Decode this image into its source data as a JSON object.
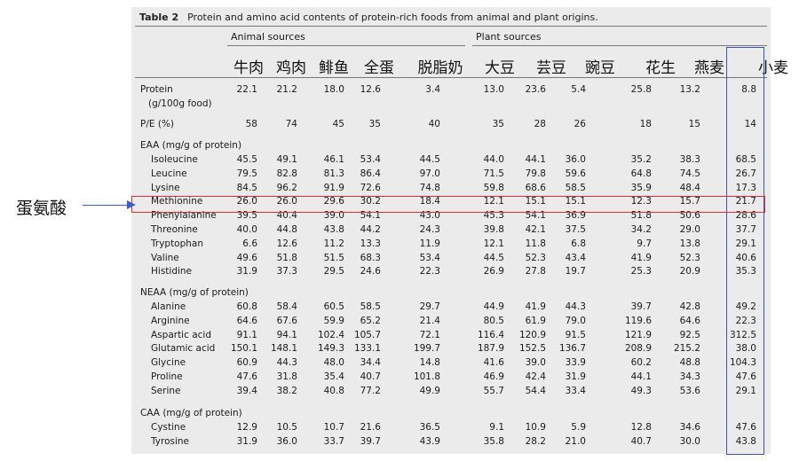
{
  "table": {
    "title_label": "Table 2",
    "title": "Protein and amino acid contents of protein-rich foods from animal and plant origins.",
    "groups": {
      "animal": "Animal sources",
      "plant": "Plant sources"
    },
    "foods_cn": [
      "牛肉",
      "鸡肉",
      "鲱鱼",
      "全蛋",
      "脱脂奶",
      "大豆",
      "芸豆",
      "豌豆",
      "花生",
      "燕麦",
      "小麦"
    ],
    "protein_row": {
      "label": "Protein",
      "note": "(g/100g food)",
      "values": [
        "22.1",
        "21.2",
        "18.0",
        "12.6",
        "3.4",
        "13.0",
        "23.6",
        "5.4",
        "25.8",
        "13.2",
        "8.8"
      ]
    },
    "pe_row": {
      "label": "P/E (%)",
      "values": [
        "58",
        "74",
        "45",
        "35",
        "40",
        "35",
        "28",
        "26",
        "18",
        "15",
        "14"
      ]
    },
    "eaa": {
      "header": "EAA (mg/g of protein)",
      "rows": [
        {
          "label": "Isoleucine",
          "values": [
            "45.5",
            "49.1",
            "46.1",
            "53.4",
            "44.5",
            "44.0",
            "44.1",
            "36.0",
            "35.2",
            "38.3",
            "68.5"
          ]
        },
        {
          "label": "Leucine",
          "values": [
            "79.5",
            "82.8",
            "81.3",
            "86.4",
            "97.0",
            "71.5",
            "79.8",
            "59.6",
            "64.8",
            "74.5",
            "26.7"
          ]
        },
        {
          "label": "Lysine",
          "values": [
            "84.5",
            "96.2",
            "91.9",
            "72.6",
            "74.8",
            "59.8",
            "68.6",
            "58.5",
            "35.9",
            "48.4",
            "17.3"
          ]
        },
        {
          "label": "Methionine",
          "values": [
            "26.0",
            "26.0",
            "29.6",
            "30.2",
            "18.4",
            "12.1",
            "15.1",
            "15.1",
            "12.3",
            "15.7",
            "21.7"
          ]
        },
        {
          "label": "Phenylalanine",
          "values": [
            "39.5",
            "40.4",
            "39.0",
            "54.1",
            "43.0",
            "45.3",
            "54.1",
            "36.9",
            "51.8",
            "50.6",
            "28.6"
          ]
        },
        {
          "label": "Threonine",
          "values": [
            "40.0",
            "44.8",
            "43.8",
            "44.2",
            "24.3",
            "39.8",
            "42.1",
            "37.5",
            "34.2",
            "29.0",
            "37.7"
          ]
        },
        {
          "label": "Tryptophan",
          "values": [
            "6.6",
            "12.6",
            "11.2",
            "13.3",
            "11.9",
            "12.1",
            "11.8",
            "6.8",
            "9.7",
            "13.8",
            "29.1"
          ]
        },
        {
          "label": "Valine",
          "values": [
            "49.6",
            "51.8",
            "51.5",
            "68.3",
            "53.4",
            "44.5",
            "52.3",
            "43.4",
            "41.9",
            "52.3",
            "40.6"
          ]
        },
        {
          "label": "Histidine",
          "values": [
            "31.9",
            "37.3",
            "29.5",
            "24.6",
            "22.3",
            "26.9",
            "27.8",
            "19.7",
            "25.3",
            "20.9",
            "35.3"
          ]
        }
      ]
    },
    "neaa": {
      "header": "NEAA (mg/g of protein)",
      "rows": [
        {
          "label": "Alanine",
          "values": [
            "60.8",
            "58.4",
            "60.5",
            "58.5",
            "29.7",
            "44.9",
            "41.9",
            "44.3",
            "39.7",
            "42.8",
            "49.2"
          ]
        },
        {
          "label": "Arginine",
          "values": [
            "64.6",
            "67.6",
            "59.9",
            "65.2",
            "21.4",
            "80.5",
            "61.9",
            "79.0",
            "119.6",
            "64.6",
            "22.3"
          ]
        },
        {
          "label": "Aspartic acid",
          "values": [
            "91.1",
            "94.1",
            "102.4",
            "105.7",
            "72.1",
            "116.4",
            "120.9",
            "91.5",
            "121.9",
            "92.5",
            "312.5"
          ]
        },
        {
          "label": "Glutamic acid",
          "values": [
            "150.1",
            "148.1",
            "149.3",
            "133.1",
            "199.7",
            "187.9",
            "152.5",
            "136.7",
            "208.9",
            "215.2",
            "38.0"
          ]
        },
        {
          "label": "Glycine",
          "values": [
            "60.9",
            "44.3",
            "48.0",
            "34.4",
            "14.8",
            "41.6",
            "39.0",
            "33.9",
            "60.2",
            "48.8",
            "104.3"
          ]
        },
        {
          "label": "Proline",
          "values": [
            "47.6",
            "31.8",
            "35.4",
            "40.7",
            "101.8",
            "46.9",
            "42.4",
            "31.9",
            "44.1",
            "34.3",
            "47.6"
          ]
        },
        {
          "label": "Serine",
          "values": [
            "39.4",
            "38.2",
            "40.8",
            "77.2",
            "49.9",
            "55.7",
            "54.4",
            "33.4",
            "49.3",
            "53.6",
            "29.1"
          ]
        }
      ]
    },
    "caa": {
      "header": "CAA (mg/g of protein)",
      "rows": [
        {
          "label": "Cystine",
          "values": [
            "12.9",
            "10.5",
            "10.7",
            "21.6",
            "36.5",
            "9.1",
            "10.9",
            "5.9",
            "12.8",
            "34.6",
            "47.6"
          ]
        },
        {
          "label": "Tyrosine",
          "values": [
            "31.9",
            "36.0",
            "33.7",
            "39.7",
            "43.9",
            "35.8",
            "28.2",
            "21.0",
            "40.7",
            "30.0",
            "43.8"
          ]
        }
      ]
    }
  },
  "annotation": {
    "text": "蛋氨酸",
    "arrow_color": "#3b5bc8",
    "highlight_color": "#e03030",
    "wheat_box_color": "#3b50c8"
  }
}
